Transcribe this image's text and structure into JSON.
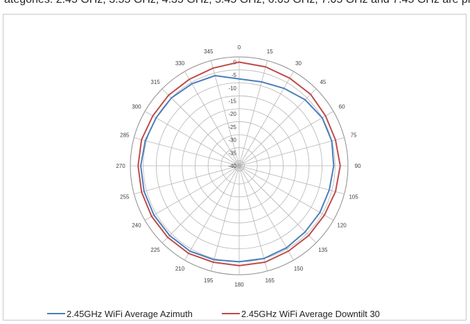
{
  "caption": "ategories:  2.45 GHz, 3.55 GHz, 4.35 GHz, 5.45 GHz, 6.05 GHz, 7.05 GHz and 7.45 GHz are provided (radiation pa",
  "chart_data": {
    "type": "polar-line",
    "angle_labels": [
      "0",
      "15",
      "30",
      "45",
      "60",
      "75",
      "90",
      "105",
      "120",
      "135",
      "150",
      "165",
      "180",
      "195",
      "210",
      "225",
      "240",
      "255",
      "270",
      "285",
      "300",
      "315",
      "330",
      "345"
    ],
    "radial_tick_labels": [
      "0",
      "-5",
      "-10",
      "-15",
      "-20",
      "-25",
      "-30",
      "-35",
      "-40"
    ],
    "r_range": [
      -40,
      2
    ],
    "angular_grid_step": 15,
    "radial_grid_step": 5,
    "legend_position": "bottom",
    "series": [
      {
        "name": "2.45GHz WiFi Average Azimuth",
        "color": "#4a7ebb",
        "angles": [
          0,
          15,
          30,
          45,
          60,
          75,
          90,
          105,
          120,
          135,
          150,
          165,
          180,
          195,
          210,
          225,
          240,
          255,
          270,
          285,
          300,
          315,
          330,
          345
        ],
        "values": [
          -6.5,
          -6.5,
          -5.5,
          -4,
          -3,
          -3,
          -3.5,
          -4,
          -4,
          -4,
          -3.5,
          -3,
          -3,
          -2.5,
          -2,
          -2,
          -2,
          -2,
          -2,
          -2.5,
          -3,
          -3,
          -3.5,
          -4
        ]
      },
      {
        "name": "2.45GHz WiFi Average Downtilt 30",
        "color": "#be4b48",
        "angles": [
          0,
          15,
          30,
          45,
          60,
          75,
          90,
          105,
          120,
          135,
          150,
          165,
          180,
          195,
          210,
          225,
          240,
          255,
          270,
          285,
          300,
          315,
          330,
          345
        ],
        "values": [
          0,
          -0.5,
          -1,
          -1,
          -1.5,
          -1.5,
          -1,
          -1.5,
          -2,
          -2,
          -2,
          -1.5,
          -1.5,
          -1.5,
          -1,
          -1,
          -1,
          -1,
          -1,
          -1,
          -1.5,
          -1.5,
          -1.5,
          -1
        ]
      }
    ]
  }
}
